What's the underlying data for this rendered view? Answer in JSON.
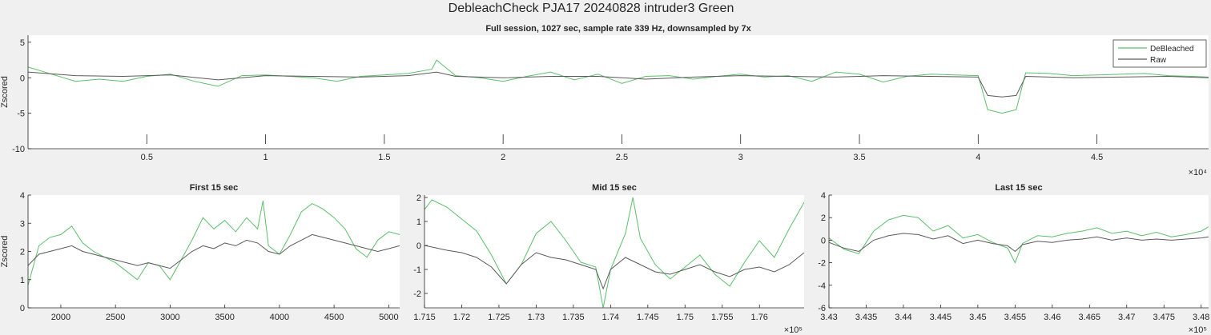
{
  "figure": {
    "title": "DebleachCheck PJA17 20240828  intruder3 Green"
  },
  "colors": {
    "debleached": "#5cbf6a",
    "raw": "#5a5a5a",
    "axis": "#262626",
    "background": "#f0f0f0",
    "axes_bg": "#ffffff"
  },
  "chart_data": [
    {
      "id": "full",
      "type": "line",
      "title": "Full session, 1027 sec, sample rate 339 Hz, downsampled by 7x",
      "xlabel": "",
      "ylabel": "Zscored",
      "xlim": [
        0,
        49700
      ],
      "ylim": [
        -10,
        6
      ],
      "xticks": [
        5000,
        10000,
        15000,
        20000,
        25000,
        30000,
        35000,
        40000,
        45000
      ],
      "xtick_labels": [
        "0.5",
        "1",
        "1.5",
        "2",
        "2.5",
        "3",
        "3.5",
        "4",
        "4.5"
      ],
      "yticks": [
        -10,
        -5,
        0,
        5
      ],
      "ytick_labels": [
        "-10",
        "-5",
        "0",
        "5"
      ],
      "xexponent": "×10⁴",
      "legend": {
        "position": "top-right",
        "entries": [
          "DeBleached",
          "Raw"
        ]
      },
      "grid": false,
      "series": [
        {
          "name": "DeBleached",
          "color": "#5cbf6a",
          "x": [
            0,
            1000,
            2000,
            3000,
            4000,
            5000,
            6000,
            7000,
            8000,
            9000,
            10000,
            11000,
            12000,
            13000,
            14000,
            15000,
            16000,
            17000,
            17200,
            18000,
            19000,
            20000,
            21000,
            22000,
            23000,
            24000,
            25000,
            26000,
            27000,
            28000,
            29000,
            30000,
            31000,
            32000,
            33000,
            34000,
            35000,
            36000,
            37000,
            38000,
            39000,
            40000,
            40400,
            41000,
            41600,
            42000,
            43000,
            44000,
            45000,
            46000,
            47000,
            48000,
            49000,
            49700
          ],
          "y": [
            1.5,
            0.5,
            -0.5,
            -0.2,
            -0.5,
            0.2,
            0.5,
            -0.5,
            -1.2,
            0.3,
            0.4,
            0.2,
            0,
            -0.5,
            0.2,
            0.4,
            0.6,
            1.2,
            2.5,
            0.3,
            0,
            -0.5,
            0.2,
            0.8,
            -0.3,
            0.5,
            -0.8,
            0.2,
            0.3,
            -0.2,
            0.2,
            0.5,
            0.1,
            0.3,
            -0.5,
            0.8,
            0.5,
            -0.6,
            0.2,
            0.5,
            0.4,
            0.3,
            -4.5,
            -5,
            -4.5,
            0.7,
            0.6,
            0.3,
            0.4,
            0.5,
            0.6,
            0.3,
            0.2,
            0.1
          ]
        },
        {
          "name": "Raw",
          "color": "#5a5a5a",
          "x": [
            0,
            2000,
            4000,
            6000,
            8000,
            10000,
            12000,
            14000,
            16000,
            17200,
            18000,
            20000,
            22000,
            24000,
            26000,
            28000,
            30000,
            32000,
            34000,
            36000,
            38000,
            40000,
            40400,
            41000,
            41600,
            42000,
            44000,
            46000,
            48000,
            49700
          ],
          "y": [
            0.8,
            0.3,
            0.2,
            0.4,
            -0.3,
            0.3,
            0.2,
            0.1,
            0.3,
            0.8,
            0.2,
            0,
            0.2,
            0.2,
            -0.2,
            0.1,
            0.3,
            0.2,
            0.1,
            0.3,
            0.2,
            0.1,
            -2.5,
            -2.7,
            -2.5,
            0.2,
            0,
            0.1,
            0.2,
            0
          ]
        }
      ]
    },
    {
      "id": "first",
      "type": "line",
      "title": "First 15 sec",
      "xlabel": "",
      "ylabel": "Zscored",
      "xlim": [
        1700,
        5100
      ],
      "ylim": [
        0,
        4
      ],
      "xticks": [
        2000,
        2500,
        3000,
        3500,
        4000,
        4500,
        5000
      ],
      "xtick_labels": [
        "2000",
        "2500",
        "3000",
        "3500",
        "4000",
        "4500",
        "5000"
      ],
      "yticks": [
        0,
        1,
        2,
        3,
        4
      ],
      "ytick_labels": [
        "0",
        "1",
        "2",
        "3",
        "4"
      ],
      "xexponent": "",
      "grid": false,
      "series": [
        {
          "name": "DeBleached",
          "color": "#5cbf6a",
          "x": [
            1700,
            1750,
            1800,
            1900,
            2000,
            2100,
            2200,
            2300,
            2400,
            2500,
            2600,
            2700,
            2800,
            2900,
            3000,
            3100,
            3200,
            3300,
            3400,
            3500,
            3600,
            3700,
            3800,
            3850,
            3900,
            4000,
            4100,
            4200,
            4300,
            4400,
            4500,
            4600,
            4700,
            4800,
            4900,
            5000,
            5100
          ],
          "y": [
            0.8,
            1.5,
            2.2,
            2.5,
            2.6,
            2.9,
            2.3,
            2.0,
            1.8,
            1.6,
            1.3,
            1.0,
            1.6,
            1.5,
            1.0,
            1.7,
            2.4,
            3.2,
            2.8,
            3.1,
            2.7,
            3.2,
            2.8,
            3.8,
            2.2,
            1.9,
            2.6,
            3.4,
            3.7,
            3.5,
            3.2,
            2.8,
            2.1,
            1.8,
            2.4,
            2.7,
            2.6
          ]
        },
        {
          "name": "Raw",
          "color": "#5a5a5a",
          "x": [
            1700,
            1800,
            1900,
            2000,
            2100,
            2200,
            2300,
            2400,
            2500,
            2600,
            2700,
            2800,
            2900,
            3000,
            3100,
            3200,
            3300,
            3400,
            3500,
            3600,
            3700,
            3800,
            3900,
            4000,
            4100,
            4200,
            4300,
            4400,
            4500,
            4600,
            4700,
            4800,
            4900,
            5000,
            5100
          ],
          "y": [
            1.5,
            1.9,
            2.0,
            2.1,
            2.2,
            2.0,
            1.9,
            1.8,
            1.7,
            1.6,
            1.5,
            1.6,
            1.5,
            1.4,
            1.7,
            2.0,
            2.2,
            2.1,
            2.3,
            2.2,
            2.4,
            2.3,
            2.0,
            1.9,
            2.2,
            2.4,
            2.6,
            2.5,
            2.4,
            2.3,
            2.2,
            2.1,
            2.0,
            2.1,
            2.2
          ]
        }
      ]
    },
    {
      "id": "mid",
      "type": "line",
      "title": "Mid 15 sec",
      "xlabel": "",
      "ylabel": "",
      "xlim": [
        171500,
        176600
      ],
      "ylim": [
        -2.6,
        2.1
      ],
      "xticks": [
        171500,
        172000,
        172500,
        173000,
        173500,
        174000,
        174500,
        175000,
        175500,
        176000
      ],
      "xtick_labels": [
        "1.715",
        "1.72",
        "1.725",
        "1.73",
        "1.735",
        "1.74",
        "1.745",
        "1.75",
        "1.755",
        "1.76"
      ],
      "yticks": [
        -2,
        -1,
        0,
        1,
        2
      ],
      "ytick_labels": [
        "-2",
        "-1",
        "0",
        "1",
        "2"
      ],
      "xexponent": "×10⁵",
      "grid": false,
      "series": [
        {
          "name": "DeBleached",
          "color": "#5cbf6a",
          "x": [
            171500,
            171600,
            171800,
            172000,
            172200,
            172400,
            172600,
            172800,
            173000,
            173200,
            173400,
            173600,
            173800,
            173900,
            174000,
            174200,
            174300,
            174400,
            174600,
            174800,
            175000,
            175200,
            175400,
            175600,
            175800,
            176000,
            176200,
            176400,
            176600
          ],
          "y": [
            1.5,
            1.9,
            1.6,
            1.1,
            0.6,
            -0.4,
            -1.6,
            -0.8,
            0.5,
            1.0,
            0.2,
            -0.7,
            -0.9,
            -2.6,
            -1.0,
            0.5,
            2.0,
            0.3,
            -0.8,
            -1.4,
            -0.9,
            -0.4,
            -1.2,
            -1.7,
            -0.7,
            0.2,
            -0.5,
            0.7,
            1.8
          ]
        },
        {
          "name": "Raw",
          "color": "#5a5a5a",
          "x": [
            171500,
            171800,
            172000,
            172200,
            172400,
            172600,
            172800,
            173000,
            173200,
            173400,
            173600,
            173800,
            173900,
            174000,
            174200,
            174400,
            174600,
            174800,
            175000,
            175200,
            175400,
            175600,
            175800,
            176000,
            176200,
            176400,
            176600
          ],
          "y": [
            0,
            -0.2,
            -0.3,
            -0.5,
            -0.9,
            -1.6,
            -0.8,
            -0.3,
            -0.5,
            -0.6,
            -0.8,
            -1.0,
            -1.8,
            -1.0,
            -0.5,
            -0.8,
            -1.1,
            -1.2,
            -1.0,
            -0.8,
            -1.1,
            -1.3,
            -1.0,
            -0.9,
            -1.1,
            -0.8,
            -0.3
          ]
        }
      ]
    },
    {
      "id": "last",
      "type": "line",
      "title": "Last 15 sec",
      "xlabel": "",
      "ylabel": "",
      "xlim": [
        343000,
        348100
      ],
      "ylim": [
        -6,
        4
      ],
      "xticks": [
        343000,
        343500,
        344000,
        344500,
        345000,
        345500,
        346000,
        346500,
        347000,
        347500,
        348000
      ],
      "xtick_labels": [
        "3.43",
        "3.435",
        "3.44",
        "3.445",
        "3.45",
        "3.455",
        "3.46",
        "3.465",
        "3.47",
        "3.475",
        "3.48"
      ],
      "yticks": [
        -6,
        -4,
        -2,
        0,
        2,
        4
      ],
      "ytick_labels": [
        "-6",
        "-4",
        "-2",
        "0",
        "2",
        "4"
      ],
      "xexponent": "×10⁵",
      "grid": false,
      "series": [
        {
          "name": "DeBleached",
          "color": "#5cbf6a",
          "x": [
            343000,
            343200,
            343400,
            343600,
            343800,
            344000,
            344200,
            344400,
            344600,
            344800,
            345000,
            345200,
            345400,
            345500,
            345600,
            345800,
            346000,
            346200,
            346400,
            346600,
            346800,
            347000,
            347200,
            347400,
            347600,
            347800,
            348000,
            348100
          ],
          "y": [
            0.2,
            -0.8,
            -1.2,
            0.8,
            1.8,
            2.2,
            2.0,
            0.8,
            1.3,
            0.2,
            0.5,
            -0.2,
            -0.7,
            -2.0,
            -0.3,
            0.4,
            0.3,
            0.6,
            0.8,
            1.1,
            0.6,
            0.8,
            0.4,
            0.7,
            0.3,
            0.5,
            0.8,
            1.2
          ]
        },
        {
          "name": "Raw",
          "color": "#5a5a5a",
          "x": [
            343000,
            343200,
            343400,
            343600,
            343800,
            344000,
            344200,
            344400,
            344600,
            344800,
            345000,
            345200,
            345400,
            345500,
            345600,
            345800,
            346000,
            346200,
            346400,
            346600,
            346800,
            347000,
            347200,
            347400,
            347600,
            347800,
            348000,
            348100
          ],
          "y": [
            -0.2,
            -0.7,
            -1.0,
            0,
            0.4,
            0.6,
            0.5,
            0.1,
            0.4,
            -0.3,
            0,
            -0.3,
            -0.5,
            -1.0,
            -0.4,
            -0.1,
            -0.2,
            0,
            0.1,
            0.3,
            0,
            0.2,
            0,
            0.1,
            0,
            0.1,
            0.2,
            0.3
          ]
        }
      ]
    }
  ]
}
